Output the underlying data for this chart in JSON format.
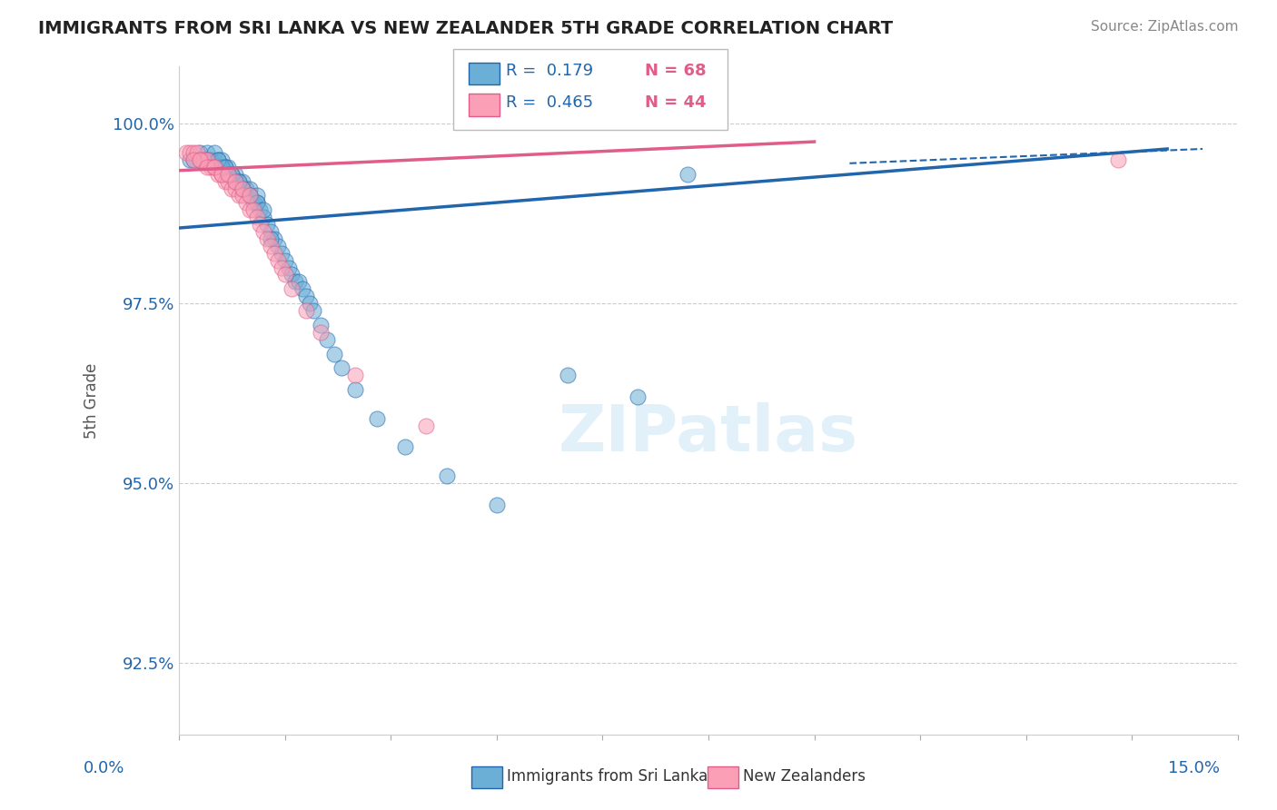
{
  "title": "IMMIGRANTS FROM SRI LANKA VS NEW ZEALANDER 5TH GRADE CORRELATION CHART",
  "source": "Source: ZipAtlas.com",
  "ylabel": "5th Grade",
  "xlim": [
    0.0,
    15.0
  ],
  "ylim": [
    91.5,
    100.8
  ],
  "yticks": [
    92.5,
    95.0,
    97.5,
    100.0
  ],
  "ytick_labels": [
    "92.5%",
    "95.0%",
    "97.5%",
    "100.0%"
  ],
  "legend_r1": "R =  0.179",
  "legend_n1": "N = 68",
  "legend_r2": "R =  0.465",
  "legend_n2": "N = 44",
  "color_blue": "#6baed6",
  "color_pink": "#fa9fb5",
  "color_blue_line": "#2166ac",
  "color_pink_line": "#e05c8a",
  "color_r_blue": "#2166ac",
  "color_r_pink": "#e05c8a",
  "blue_scatter_x": [
    0.15,
    0.2,
    0.3,
    0.35,
    0.4,
    0.45,
    0.5,
    0.55,
    0.6,
    0.65,
    0.7,
    0.75,
    0.8,
    0.85,
    0.9,
    0.95,
    1.0,
    1.05,
    1.1,
    1.15,
    1.2,
    1.25,
    1.3,
    1.35,
    1.4,
    1.45,
    1.5,
    1.55,
    1.6,
    1.65,
    1.7,
    1.75,
    1.8,
    1.85,
    1.9,
    2.0,
    2.1,
    2.2,
    2.3,
    2.5,
    2.8,
    3.2,
    3.8,
    4.5,
    1.0,
    1.1,
    0.8,
    0.9,
    0.7,
    0.6,
    0.5,
    0.4,
    0.3,
    0.6,
    0.7,
    0.8,
    0.9,
    1.0,
    1.1,
    1.2,
    5.5,
    6.5,
    7.2,
    1.3,
    0.55,
    0.65,
    0.75,
    0.85
  ],
  "blue_scatter_y": [
    99.5,
    99.5,
    99.6,
    99.5,
    99.6,
    99.5,
    99.6,
    99.5,
    99.5,
    99.4,
    99.4,
    99.3,
    99.3,
    99.2,
    99.2,
    99.1,
    99.0,
    98.9,
    98.9,
    98.8,
    98.7,
    98.6,
    98.5,
    98.4,
    98.3,
    98.2,
    98.1,
    98.0,
    97.9,
    97.8,
    97.8,
    97.7,
    97.6,
    97.5,
    97.4,
    97.2,
    97.0,
    96.8,
    96.6,
    96.3,
    95.9,
    95.5,
    95.1,
    94.7,
    99.1,
    99.0,
    99.2,
    99.1,
    99.3,
    99.4,
    99.4,
    99.5,
    99.5,
    99.4,
    99.3,
    99.2,
    99.1,
    99.0,
    98.9,
    98.8,
    96.5,
    96.2,
    99.3,
    98.4,
    99.5,
    99.4,
    99.3,
    99.2
  ],
  "pink_scatter_x": [
    0.1,
    0.15,
    0.2,
    0.25,
    0.3,
    0.35,
    0.4,
    0.45,
    0.5,
    0.55,
    0.6,
    0.65,
    0.7,
    0.75,
    0.8,
    0.85,
    0.9,
    0.95,
    1.0,
    1.05,
    1.1,
    1.15,
    1.2,
    1.25,
    1.3,
    1.35,
    1.4,
    1.45,
    1.5,
    1.6,
    1.8,
    2.0,
    2.5,
    3.5,
    13.3,
    0.2,
    0.3,
    0.4,
    0.5,
    0.6,
    0.7,
    0.8,
    0.9,
    1.0
  ],
  "pink_scatter_y": [
    99.6,
    99.6,
    99.6,
    99.6,
    99.5,
    99.5,
    99.5,
    99.4,
    99.4,
    99.3,
    99.3,
    99.2,
    99.2,
    99.1,
    99.1,
    99.0,
    99.0,
    98.9,
    98.8,
    98.8,
    98.7,
    98.6,
    98.5,
    98.4,
    98.3,
    98.2,
    98.1,
    98.0,
    97.9,
    97.7,
    97.4,
    97.1,
    96.5,
    95.8,
    99.5,
    99.5,
    99.5,
    99.4,
    99.4,
    99.3,
    99.3,
    99.2,
    99.1,
    99.0
  ],
  "blue_trend_x0": 0.0,
  "blue_trend_x1": 14.0,
  "blue_trend_y0": 98.55,
  "blue_trend_y1": 99.65,
  "pink_trend_x0": 0.0,
  "pink_trend_x1": 9.0,
  "pink_trend_y0": 99.35,
  "pink_trend_y1": 99.75,
  "blue_dash_x0": 9.5,
  "blue_dash_x1": 14.5,
  "blue_dash_y0": 99.45,
  "blue_dash_y1": 99.65,
  "background_color": "#ffffff",
  "grid_color": "#cccccc"
}
